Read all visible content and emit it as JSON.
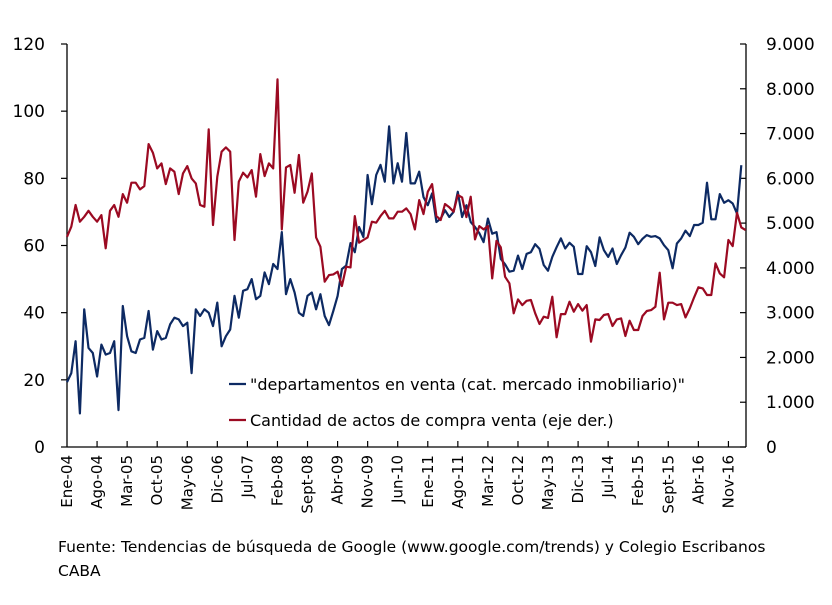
{
  "chart_data": {
    "type": "line",
    "title": "",
    "x_start": "Ene-04",
    "x_frequency": "monthly",
    "categories_shown": [
      "Ene-04",
      "Ago-04",
      "Mar-05",
      "Oct-05",
      "May-06",
      "Dic-06",
      "Jul-07",
      "Feb-08",
      "Sept-08",
      "Abr-09",
      "Nov-09",
      "Jun-10",
      "Ene-11",
      "Ago-11",
      "Mar-12",
      "Oct-12",
      "May-13",
      "Dic-13",
      "Jul-14",
      "Feb-15",
      "Sept-15",
      "Abr-16",
      "Nov-16"
    ],
    "label_every_months": 7,
    "y_left": {
      "min": 0,
      "max": 120,
      "ticks": [
        "0",
        "20",
        "40",
        "60",
        "80",
        "100",
        "120"
      ]
    },
    "y_right": {
      "min": 0,
      "max": 9000,
      "ticks": [
        "0",
        "1.000",
        "2.000",
        "3.000",
        "4.000",
        "5.000",
        "6.000",
        "7.000",
        "8.000",
        "9.000"
      ]
    },
    "grid": false,
    "legend_placement": "bottom-center-inside",
    "series": [
      {
        "name": "\"departamentos en venta (cat. mercado inmobiliario)\"",
        "axis": "left",
        "color": "#0d2a63",
        "values": [
          19.3,
          22,
          31.5,
          10,
          41,
          29.5,
          28,
          21,
          30.5,
          27.5,
          28,
          31.5,
          11,
          42,
          33,
          28.5,
          28,
          32,
          32.5,
          40.5,
          29,
          34.5,
          32,
          32.5,
          36.5,
          38.5,
          38,
          36,
          37,
          22,
          41,
          39,
          41,
          40,
          36,
          43,
          30,
          33,
          35,
          45,
          38.5,
          46.5,
          47,
          50,
          44,
          45,
          52,
          48.5,
          54.5,
          53,
          64,
          45.5,
          50,
          46,
          40,
          39,
          45,
          46,
          41,
          45.5,
          39,
          36.3,
          40.5,
          45,
          53,
          54,
          60.7,
          58,
          65.5,
          62.5,
          81,
          72.3,
          81,
          84,
          79,
          95.5,
          78.5,
          84.5,
          79,
          93.5,
          78.5,
          78.5,
          82,
          74.4,
          72,
          75.5,
          67,
          68,
          70.5,
          68.5,
          70,
          76,
          68.5,
          72,
          67,
          65.5,
          63.7,
          61,
          68,
          63.5,
          64,
          56,
          54.4,
          52.2,
          52.5,
          57,
          53,
          57.5,
          58,
          60.4,
          59,
          54.2,
          52.5,
          56.6,
          59.5,
          62.1,
          59.1,
          60.8,
          59.6,
          51.5,
          51.5,
          59.8,
          58,
          53.9,
          62.4,
          58.6,
          56.6,
          59.1,
          54.5,
          57.1,
          59.4,
          63.8,
          62.6,
          60.4,
          62,
          63.1,
          62.6,
          62.8,
          62.1,
          60.1,
          58.6,
          53.2,
          60.6,
          62.1,
          64.4,
          62.8,
          66.1,
          66.1,
          66.8,
          78.7,
          67.8,
          67.8,
          75.3,
          72.7,
          73.5,
          72.5,
          69.5,
          83.9
        ]
      },
      {
        "name": "Cantidad de actos de compra venta (eje der.)",
        "axis": "right",
        "color": "#9b0a22",
        "values": [
          4695,
          4919,
          5404,
          5031,
          5142,
          5276,
          5142,
          5031,
          5180,
          4437,
          5276,
          5404,
          5142,
          5649,
          5455,
          5902,
          5902,
          5753,
          5827,
          6765,
          6572,
          6222,
          6334,
          5872,
          6222,
          6147,
          5649,
          6110,
          6273,
          5999,
          5887,
          5404,
          5366,
          7093,
          4957,
          6036,
          6594,
          6691,
          6594,
          4622,
          5924,
          6125,
          6021,
          6184,
          5589,
          6542,
          6050,
          6334,
          6222,
          8210,
          4860,
          6244,
          6297,
          5678,
          6520,
          5455,
          5701,
          6110,
          4682,
          4473,
          3691,
          3840,
          3854,
          3914,
          3595,
          4026,
          4011,
          5157,
          4562,
          4622,
          4682,
          5031,
          5009,
          5157,
          5276,
          5105,
          5105,
          5254,
          5254,
          5329,
          5202,
          4860,
          5514,
          5202,
          5701,
          5872,
          5157,
          5069,
          5426,
          5352,
          5254,
          5627,
          5574,
          5135,
          5590,
          4636,
          4934,
          4860,
          4934,
          3765,
          4606,
          4458,
          3802,
          3655,
          2985,
          3297,
          3170,
          3266,
          3283,
          2985,
          2746,
          2909,
          2884,
          3356,
          2449,
          2969,
          2969,
          3244,
          3021,
          3192,
          3043,
          3170,
          2351,
          2850,
          2836,
          2947,
          2969,
          2702,
          2850,
          2873,
          2478,
          2820,
          2612,
          2612,
          2925,
          3037,
          3058,
          3132,
          3892,
          2850,
          3222,
          3222,
          3170,
          3192,
          2895,
          3096,
          3342,
          3566,
          3543,
          3394,
          3394,
          4101,
          3878,
          3789,
          4622,
          4487,
          5231,
          4904,
          4844
        ]
      }
    ]
  },
  "source": "Fuente: Tendencias de búsqueda de Google (www.google.com/trends)  y Colegio Escribanos CABA"
}
